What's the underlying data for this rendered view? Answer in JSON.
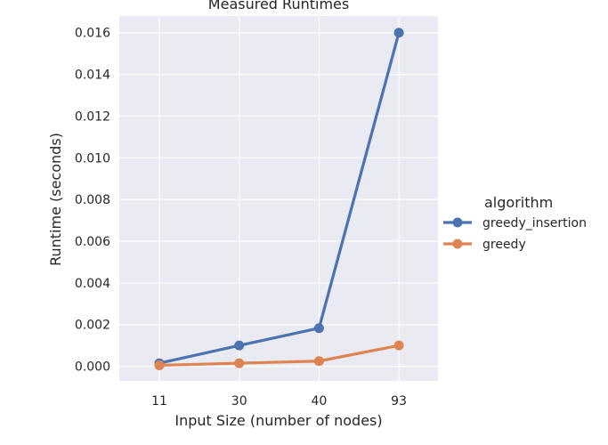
{
  "chart_data": {
    "type": "line",
    "title": "Measured Runtimes",
    "xlabel": "Input Size (number of nodes)",
    "ylabel": "Runtime (seconds)",
    "categories": [
      "11",
      "30",
      "40",
      "93"
    ],
    "ylim": [
      -0.0007,
      0.0168
    ],
    "yticks": [
      "0.000",
      "0.002",
      "0.004",
      "0.006",
      "0.008",
      "0.010",
      "0.012",
      "0.014",
      "0.016"
    ],
    "grid": true,
    "legend": {
      "title": "algorithm",
      "placement": "right"
    },
    "series": [
      {
        "name": "greedy_insertion",
        "color": "#4c72b0",
        "values": [
          0.00015,
          0.001,
          0.00183,
          0.016
        ]
      },
      {
        "name": "greedy",
        "color": "#dd8452",
        "values": [
          5e-05,
          0.00015,
          0.00025,
          0.001
        ]
      }
    ],
    "background": "#eaeaf2"
  }
}
